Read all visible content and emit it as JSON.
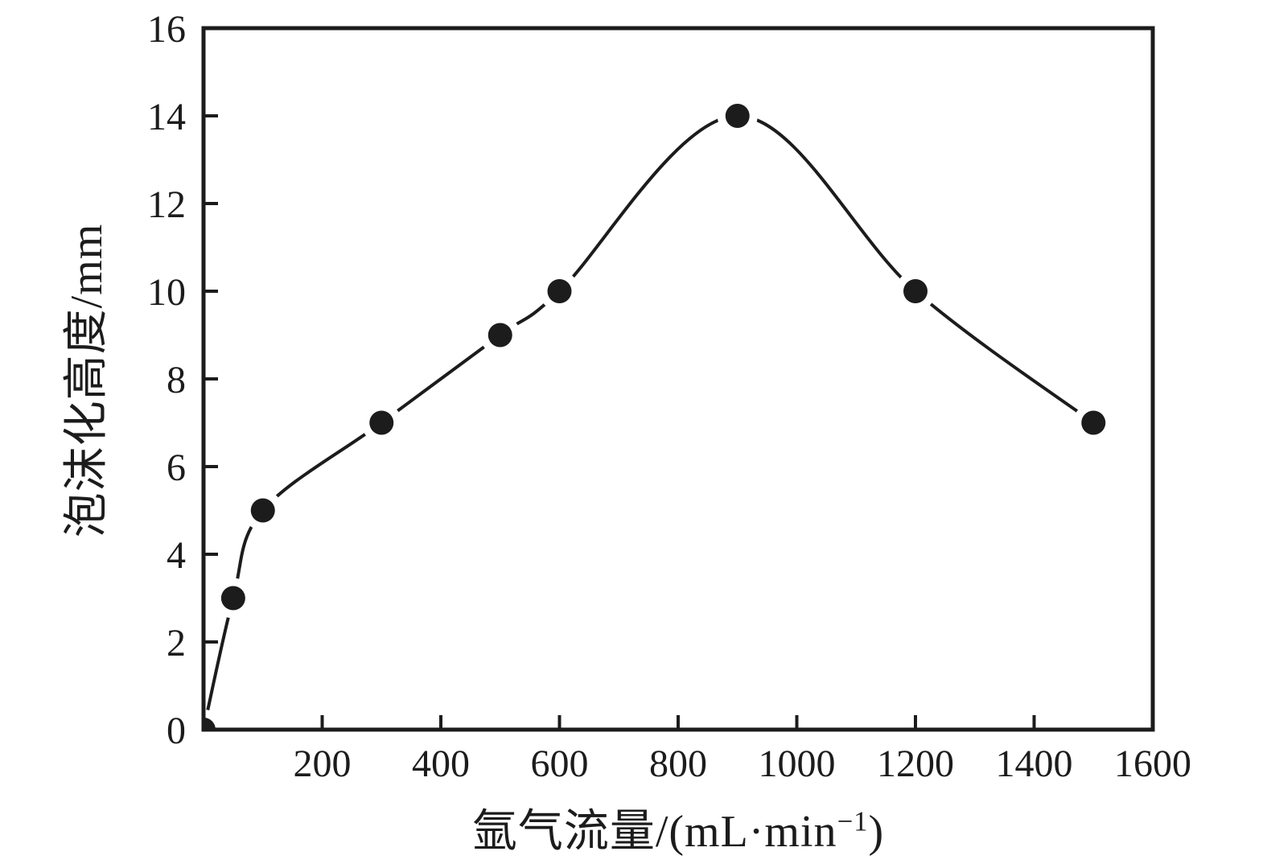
{
  "figure": {
    "background": "#ffffff",
    "ink_color": "#1c1c1c"
  },
  "chart_data": {
    "type": "line",
    "title": "",
    "xlabel": "氩气流量/(mL·min⁻¹)",
    "xlabel_parts": {
      "base": "氩气流量/(mL·min",
      "sup": "−1",
      "close": ")"
    },
    "ylabel": "泡沫化高度/mm",
    "xlim": [
      0,
      1600
    ],
    "ylim": [
      0,
      16
    ],
    "x_ticks": [
      200,
      400,
      600,
      800,
      1000,
      1200,
      1400,
      1600
    ],
    "y_ticks": [
      0,
      2,
      4,
      6,
      8,
      10,
      12,
      14,
      16
    ],
    "grid": false,
    "legend": "none",
    "x": [
      0,
      50,
      100,
      300,
      500,
      600,
      900,
      1200,
      1500
    ],
    "series": [
      {
        "values": [
          0,
          3,
          5,
          7,
          9,
          10,
          14,
          10,
          7
        ],
        "marker": "filled-circle",
        "color": "#1c1c1c",
        "line_style": "smooth"
      }
    ]
  }
}
